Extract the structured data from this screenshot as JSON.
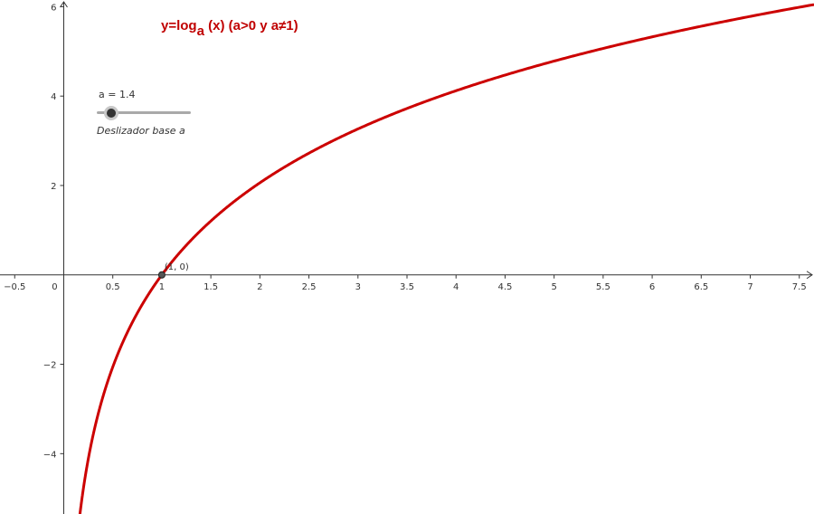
{
  "chart_data": {
    "type": "line",
    "title": {
      "prefix": "y=log",
      "subscript": "a",
      "suffix": " (x) (a>0 y a≠1)"
    },
    "x_range": [
      -0.65,
      7.65
    ],
    "y_range": [
      -5.35,
      6.15
    ],
    "x_ticks": [
      -0.5,
      0.5,
      1,
      1.5,
      2,
      2.5,
      3,
      3.5,
      4,
      4.5,
      5,
      5.5,
      6,
      6.5,
      7,
      7.5
    ],
    "x_tick_labels": [
      "−0.5",
      "0.5",
      "1",
      "1.5",
      "2",
      "2.5",
      "3",
      "3.5",
      "4",
      "4.5",
      "5",
      "5.5",
      "6",
      "6.5",
      "7",
      "7.5"
    ],
    "origin_label": "0",
    "y_ticks": [
      -4,
      -2,
      2,
      4,
      6
    ],
    "y_tick_labels": [
      "−4",
      "−2",
      "2",
      "4",
      "6"
    ],
    "grid": false,
    "series": [
      {
        "function": "log_a(x)",
        "base": 1.4,
        "color": "#cc0000"
      }
    ],
    "points": [
      {
        "x": 1,
        "y": 0,
        "label": "(1, 0)"
      }
    ]
  },
  "slider": {
    "value_label": "a = 1.4",
    "caption": "Deslizador base a",
    "value": 1.4,
    "fraction": 0.08
  },
  "colors": {
    "curve": "#cc0000",
    "title": "#c00000",
    "axis": "#333333"
  }
}
